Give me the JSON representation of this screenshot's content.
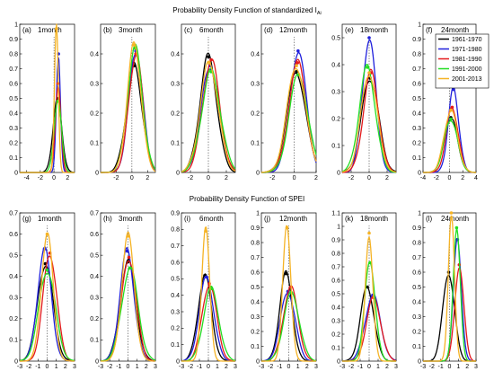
{
  "figure": {
    "row_titles": [
      "Probability Density Function of standardized I",
      "Probability Density Function of SPEI"
    ],
    "row_title_subscripts": [
      "Ai",
      ""
    ]
  },
  "legend": {
    "entries": [
      {
        "label": "1961-1970",
        "color": "#000000"
      },
      {
        "label": "1971-1980",
        "color": "#1f1fdc"
      },
      {
        "label": "1981-1990",
        "color": "#e41a1c"
      },
      {
        "label": "1991-2000",
        "color": "#22dd22"
      },
      {
        "label": "2001-2013",
        "color": "#f5b325"
      }
    ]
  },
  "chart_data": [
    {
      "type": "line",
      "label": "(a)",
      "title": "1month",
      "row": 0,
      "xlim": [
        -5,
        3
      ],
      "ylim": [
        0,
        1
      ],
      "xticks": [
        -4,
        -2,
        0,
        2
      ],
      "yticks": [
        0,
        0.1,
        0.2,
        0.3,
        0.4,
        0.5,
        0.6,
        0.7,
        0.8,
        0.9,
        1
      ],
      "series": [
        {
          "name": "1961-1970",
          "mu": 0.5,
          "sigma": 0.65,
          "peak": 0.49
        },
        {
          "name": "1971-1980",
          "mu": 0.65,
          "sigma": 0.3,
          "peak": 0.8
        },
        {
          "name": "1981-1990",
          "mu": 0.6,
          "sigma": 0.4,
          "peak": 0.6
        },
        {
          "name": "1991-2000",
          "mu": 0.55,
          "sigma": 0.55,
          "peak": 0.48
        },
        {
          "name": "2001-2013",
          "mu": 0.35,
          "sigma": 0.28,
          "peak": 0.97
        }
      ]
    },
    {
      "type": "line",
      "label": "(b)",
      "title": "3month",
      "row": 0,
      "xlim": [
        -4,
        3
      ],
      "ylim": [
        0,
        0.5
      ],
      "xticks": [
        -2,
        0,
        2
      ],
      "yticks": [
        0,
        0.1,
        0.2,
        0.3,
        0.4
      ],
      "series": [
        {
          "name": "1961-1970",
          "mu": 0.3,
          "sigma": 1.0,
          "peak": 0.36
        },
        {
          "name": "1971-1980",
          "mu": 0.5,
          "sigma": 0.9,
          "peak": 0.41
        },
        {
          "name": "1981-1990",
          "mu": 0.5,
          "sigma": 0.9,
          "peak": 0.4
        },
        {
          "name": "1991-2000",
          "mu": 0.4,
          "sigma": 0.95,
          "peak": 0.42
        },
        {
          "name": "2001-2013",
          "mu": 0.3,
          "sigma": 0.9,
          "peak": 0.43
        }
      ]
    },
    {
      "type": "line",
      "label": "(c)",
      "title": "6month",
      "row": 0,
      "xlim": [
        -3,
        3
      ],
      "ylim": [
        0,
        0.5
      ],
      "xticks": [
        -2,
        0,
        2
      ],
      "yticks": [
        0,
        0.1,
        0.2,
        0.3,
        0.4
      ],
      "series": [
        {
          "name": "1961-1970",
          "mu": 0.0,
          "sigma": 0.95,
          "peak": 0.39
        },
        {
          "name": "1971-1980",
          "mu": 0.2,
          "sigma": 1.0,
          "peak": 0.36
        },
        {
          "name": "1981-1990",
          "mu": 0.3,
          "sigma": 0.95,
          "peak": 0.38
        },
        {
          "name": "1991-2000",
          "mu": 0.3,
          "sigma": 1.05,
          "peak": 0.34
        },
        {
          "name": "2001-2013",
          "mu": 0.1,
          "sigma": 1.0,
          "peak": 0.37
        }
      ]
    },
    {
      "type": "line",
      "label": "(d)",
      "title": "12month",
      "row": 0,
      "xlim": [
        -3,
        2
      ],
      "ylim": [
        0,
        0.5
      ],
      "xticks": [
        -2,
        0,
        2
      ],
      "yticks": [
        0,
        0.1,
        0.2,
        0.3,
        0.4
      ],
      "series": [
        {
          "name": "1961-1970",
          "mu": 0.2,
          "sigma": 0.85,
          "peak": 0.34
        },
        {
          "name": "1971-1980",
          "mu": 0.35,
          "sigma": 0.75,
          "peak": 0.41
        },
        {
          "name": "1981-1990",
          "mu": 0.3,
          "sigma": 0.8,
          "peak": 0.37
        },
        {
          "name": "1991-2000",
          "mu": 0.4,
          "sigma": 0.85,
          "peak": 0.33
        },
        {
          "name": "2001-2013",
          "mu": 0.2,
          "sigma": 0.85,
          "peak": 0.36
        }
      ]
    },
    {
      "type": "line",
      "label": "(e)",
      "title": "18month",
      "row": 0,
      "xlim": [
        -3,
        3
      ],
      "ylim": [
        0,
        0.55
      ],
      "xticks": [
        -2,
        0,
        2
      ],
      "yticks": [
        0,
        0.1,
        0.2,
        0.3,
        0.4,
        0.5
      ],
      "series": [
        {
          "name": "1961-1970",
          "mu": 0.1,
          "sigma": 0.95,
          "peak": 0.35
        },
        {
          "name": "1971-1980",
          "mu": 0.0,
          "sigma": 0.75,
          "peak": 0.5
        },
        {
          "name": "1981-1990",
          "mu": 0.2,
          "sigma": 0.85,
          "peak": 0.37
        },
        {
          "name": "1991-2000",
          "mu": -0.2,
          "sigma": 0.9,
          "peak": 0.39
        },
        {
          "name": "2001-2013",
          "mu": 0.0,
          "sigma": 0.9,
          "peak": 0.37
        }
      ]
    },
    {
      "type": "line",
      "label": "(f)",
      "title": "24month",
      "row": 0,
      "xlim": [
        -4,
        4
      ],
      "ylim": [
        0,
        1
      ],
      "xticks": [
        -4,
        -2,
        0,
        2,
        4
      ],
      "yticks": [
        0,
        0.1,
        0.2,
        0.3,
        0.4,
        0.5,
        0.6,
        0.7,
        0.8,
        0.9,
        1
      ],
      "series": [
        {
          "name": "1961-1970",
          "mu": 0.2,
          "sigma": 1.0,
          "peak": 0.37
        },
        {
          "name": "1971-1980",
          "mu": 0.6,
          "sigma": 0.8,
          "peak": 0.56
        },
        {
          "name": "1981-1990",
          "mu": 0.4,
          "sigma": 0.9,
          "peak": 0.44
        },
        {
          "name": "1991-2000",
          "mu": 0.2,
          "sigma": 1.0,
          "peak": 0.36
        },
        {
          "name": "2001-2013",
          "mu": 0.2,
          "sigma": 1.0,
          "peak": 0.42
        }
      ]
    },
    {
      "type": "line",
      "label": "(g)",
      "title": "1month",
      "row": 1,
      "xlim": [
        -3,
        3
      ],
      "ylim": [
        0,
        0.7
      ],
      "xticks": [
        -3,
        -2,
        -1,
        0,
        1,
        2,
        3
      ],
      "yticks": [
        0,
        0.1,
        0.2,
        0.3,
        0.4,
        0.5,
        0.6,
        0.7
      ],
      "series": [
        {
          "name": "1961-1970",
          "mu": -0.2,
          "sigma": 0.85,
          "peak": 0.46
        },
        {
          "name": "1971-1980",
          "mu": -0.3,
          "sigma": 0.75,
          "peak": 0.53
        },
        {
          "name": "1981-1990",
          "mu": 0.3,
          "sigma": 0.75,
          "peak": 0.51
        },
        {
          "name": "1991-2000",
          "mu": 0.0,
          "sigma": 0.9,
          "peak": 0.43
        },
        {
          "name": "2001-2013",
          "mu": 0.0,
          "sigma": 0.65,
          "peak": 0.6
        }
      ]
    },
    {
      "type": "line",
      "label": "(h)",
      "title": "3month",
      "row": 1,
      "xlim": [
        -3,
        3
      ],
      "ylim": [
        0,
        0.7
      ],
      "xticks": [
        -3,
        -2,
        -1,
        0,
        1,
        2,
        3
      ],
      "yticks": [
        0,
        0.1,
        0.2,
        0.3,
        0.4,
        0.5,
        0.6,
        0.7
      ],
      "series": [
        {
          "name": "1961-1970",
          "mu": 0.0,
          "sigma": 0.85,
          "peak": 0.47
        },
        {
          "name": "1971-1980",
          "mu": -0.1,
          "sigma": 0.78,
          "peak": 0.52
        },
        {
          "name": "1981-1990",
          "mu": 0.1,
          "sigma": 0.8,
          "peak": 0.49
        },
        {
          "name": "1991-2000",
          "mu": 0.2,
          "sigma": 0.9,
          "peak": 0.44
        },
        {
          "name": "2001-2013",
          "mu": 0.0,
          "sigma": 0.7,
          "peak": 0.59
        }
      ]
    },
    {
      "type": "line",
      "label": "(i)",
      "title": "6month",
      "row": 1,
      "xlim": [
        -3,
        3
      ],
      "ylim": [
        0,
        0.9
      ],
      "xticks": [
        -3,
        -2,
        -1,
        0,
        1,
        2,
        3
      ],
      "yticks": [
        0,
        0.1,
        0.2,
        0.3,
        0.4,
        0.5,
        0.6,
        0.7,
        0.8,
        0.9
      ],
      "series": [
        {
          "name": "1961-1970",
          "mu": -0.4,
          "sigma": 0.75,
          "peak": 0.52
        },
        {
          "name": "1971-1980",
          "mu": -0.2,
          "sigma": 0.8,
          "peak": 0.51
        },
        {
          "name": "1981-1990",
          "mu": 0.1,
          "sigma": 0.8,
          "peak": 0.47
        },
        {
          "name": "1991-2000",
          "mu": 0.3,
          "sigma": 0.85,
          "peak": 0.44
        },
        {
          "name": "2001-2013",
          "mu": -0.3,
          "sigma": 0.45,
          "peak": 0.79
        }
      ]
    },
    {
      "type": "line",
      "label": "(j)",
      "title": "12month",
      "row": 1,
      "xlim": [
        -3,
        3
      ],
      "ylim": [
        0,
        1
      ],
      "xticks": [
        -3,
        -2,
        -1,
        0,
        1,
        2,
        3
      ],
      "yticks": [
        0,
        0.1,
        0.2,
        0.3,
        0.4,
        0.5,
        0.6,
        0.7,
        0.8,
        0.9,
        1
      ],
      "series": [
        {
          "name": "1961-1970",
          "mu": -0.3,
          "sigma": 0.7,
          "peak": 0.59
        },
        {
          "name": "1971-1980",
          "mu": -0.1,
          "sigma": 0.8,
          "peak": 0.47
        },
        {
          "name": "1981-1990",
          "mu": 0.2,
          "sigma": 0.8,
          "peak": 0.5
        },
        {
          "name": "1991-2000",
          "mu": 0.3,
          "sigma": 0.85,
          "peak": 0.46
        },
        {
          "name": "2001-2013",
          "mu": -0.2,
          "sigma": 0.45,
          "peak": 0.9
        }
      ]
    },
    {
      "type": "line",
      "label": "(k)",
      "title": "18month",
      "row": 1,
      "xlim": [
        -3,
        3
      ],
      "ylim": [
        0,
        1.1
      ],
      "xticks": [
        -3,
        -2,
        -1,
        0,
        1,
        2,
        3
      ],
      "yticks": [
        0,
        0.1,
        0.2,
        0.3,
        0.4,
        0.5,
        0.6,
        0.7,
        0.8,
        0.9,
        1,
        1.1
      ],
      "series": [
        {
          "name": "1961-1970",
          "mu": -0.2,
          "sigma": 0.75,
          "peak": 0.55
        },
        {
          "name": "1971-1980",
          "mu": 0.4,
          "sigma": 0.85,
          "peak": 0.49
        },
        {
          "name": "1981-1990",
          "mu": 0.5,
          "sigma": 0.8,
          "peak": 0.47
        },
        {
          "name": "1991-2000",
          "mu": 0.1,
          "sigma": 0.6,
          "peak": 0.73
        },
        {
          "name": "2001-2013",
          "mu": 0.0,
          "sigma": 0.42,
          "peak": 0.95
        }
      ]
    },
    {
      "type": "line",
      "label": "(l)",
      "title": "24month",
      "row": 1,
      "xlim": [
        -3,
        3
      ],
      "ylim": [
        0,
        1
      ],
      "xticks": [
        -3,
        -2,
        -1,
        0,
        1,
        2,
        3
      ],
      "yticks": [
        0,
        0.1,
        0.2,
        0.3,
        0.4,
        0.5,
        0.6,
        0.7,
        0.8,
        0.9,
        1
      ],
      "series": [
        {
          "name": "1961-1970",
          "mu": -0.1,
          "sigma": 0.65,
          "peak": 0.6
        },
        {
          "name": "1971-1980",
          "mu": 0.9,
          "sigma": 0.45,
          "peak": 0.82
        },
        {
          "name": "1981-1990",
          "mu": 1.1,
          "sigma": 0.5,
          "peak": 0.65
        },
        {
          "name": "1991-2000",
          "mu": 0.8,
          "sigma": 0.4,
          "peak": 0.9
        },
        {
          "name": "2001-2013",
          "mu": 0.2,
          "sigma": 0.35,
          "peak": 1.0
        }
      ]
    }
  ]
}
